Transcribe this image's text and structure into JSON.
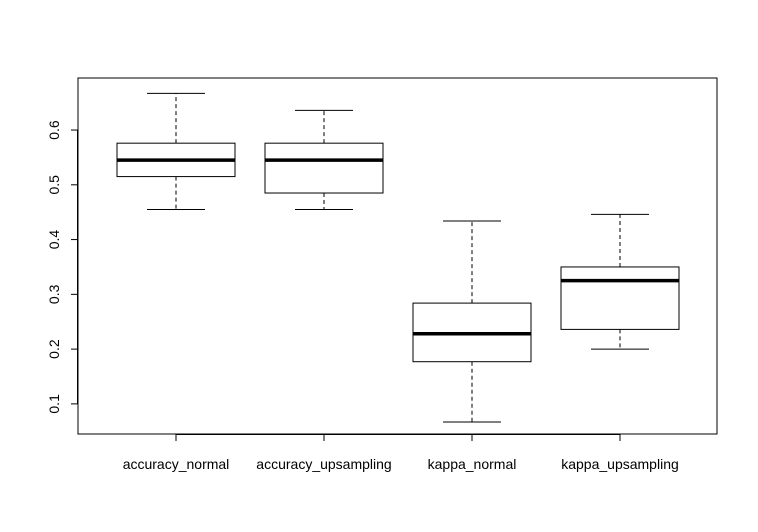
{
  "chart_data": {
    "type": "boxplot",
    "title": "",
    "xlabel": "",
    "ylabel": "",
    "categories": [
      "accuracy_normal",
      "accuracy_upsampling",
      "kappa_normal",
      "kappa_upsampling"
    ],
    "boxes": [
      {
        "name": "accuracy_normal",
        "min": 0.455,
        "q1": 0.515,
        "median": 0.545,
        "q3": 0.576,
        "max": 0.667
      },
      {
        "name": "accuracy_upsampling",
        "min": 0.455,
        "q1": 0.485,
        "median": 0.545,
        "q3": 0.576,
        "max": 0.636
      },
      {
        "name": "kappa_normal",
        "min": 0.067,
        "q1": 0.177,
        "median": 0.228,
        "q3": 0.284,
        "max": 0.434
      },
      {
        "name": "kappa_upsampling",
        "min": 0.2,
        "q1": 0.236,
        "median": 0.325,
        "q3": 0.35,
        "max": 0.446
      }
    ],
    "yticks": [
      0.1,
      0.2,
      0.3,
      0.4,
      0.5,
      0.6
    ],
    "ylim": [
      0.045,
      0.695
    ],
    "grid": false,
    "legend": "none"
  }
}
